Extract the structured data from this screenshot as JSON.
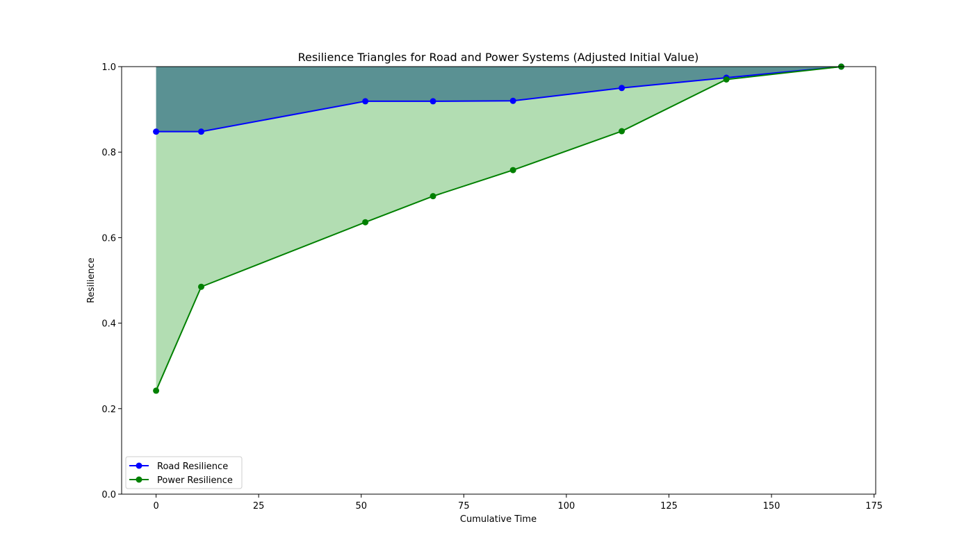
{
  "chart_data": {
    "type": "line",
    "title": "Resilience Triangles for Road and Power Systems (Adjusted Initial Value)",
    "xlabel": "Cumulative Time",
    "ylabel": "Resilience",
    "xlim": [
      -8.4,
      175.4
    ],
    "ylim": [
      0,
      1
    ],
    "x_ticks": [
      0,
      25,
      50,
      75,
      100,
      125,
      150,
      175
    ],
    "y_ticks": [
      0.0,
      0.2,
      0.4,
      0.6,
      0.8,
      1.0
    ],
    "x_tick_labels": [
      "0",
      "25",
      "50",
      "75",
      "100",
      "125",
      "150",
      "175"
    ],
    "y_tick_labels": [
      "0.0",
      "0.2",
      "0.4",
      "0.6",
      "0.8",
      "1.0"
    ],
    "grid": false,
    "legend_position": "lower-left",
    "series": [
      {
        "name": "Road Resilience",
        "color": "#0000ff",
        "fill_color": "#1f5f7f",
        "x": [
          0,
          11,
          51,
          67.5,
          87,
          113.5,
          139,
          167
        ],
        "y": [
          0.848,
          0.848,
          0.919,
          0.919,
          0.92,
          0.95,
          0.974,
          1.0
        ]
      },
      {
        "name": "Power Resilience",
        "color": "#008000",
        "fill_color": "#66bb66",
        "x": [
          0,
          11,
          51,
          67.5,
          87,
          113.5,
          139,
          167
        ],
        "y": [
          0.242,
          0.485,
          0.636,
          0.697,
          0.758,
          0.849,
          0.97,
          1.0
        ]
      }
    ]
  }
}
